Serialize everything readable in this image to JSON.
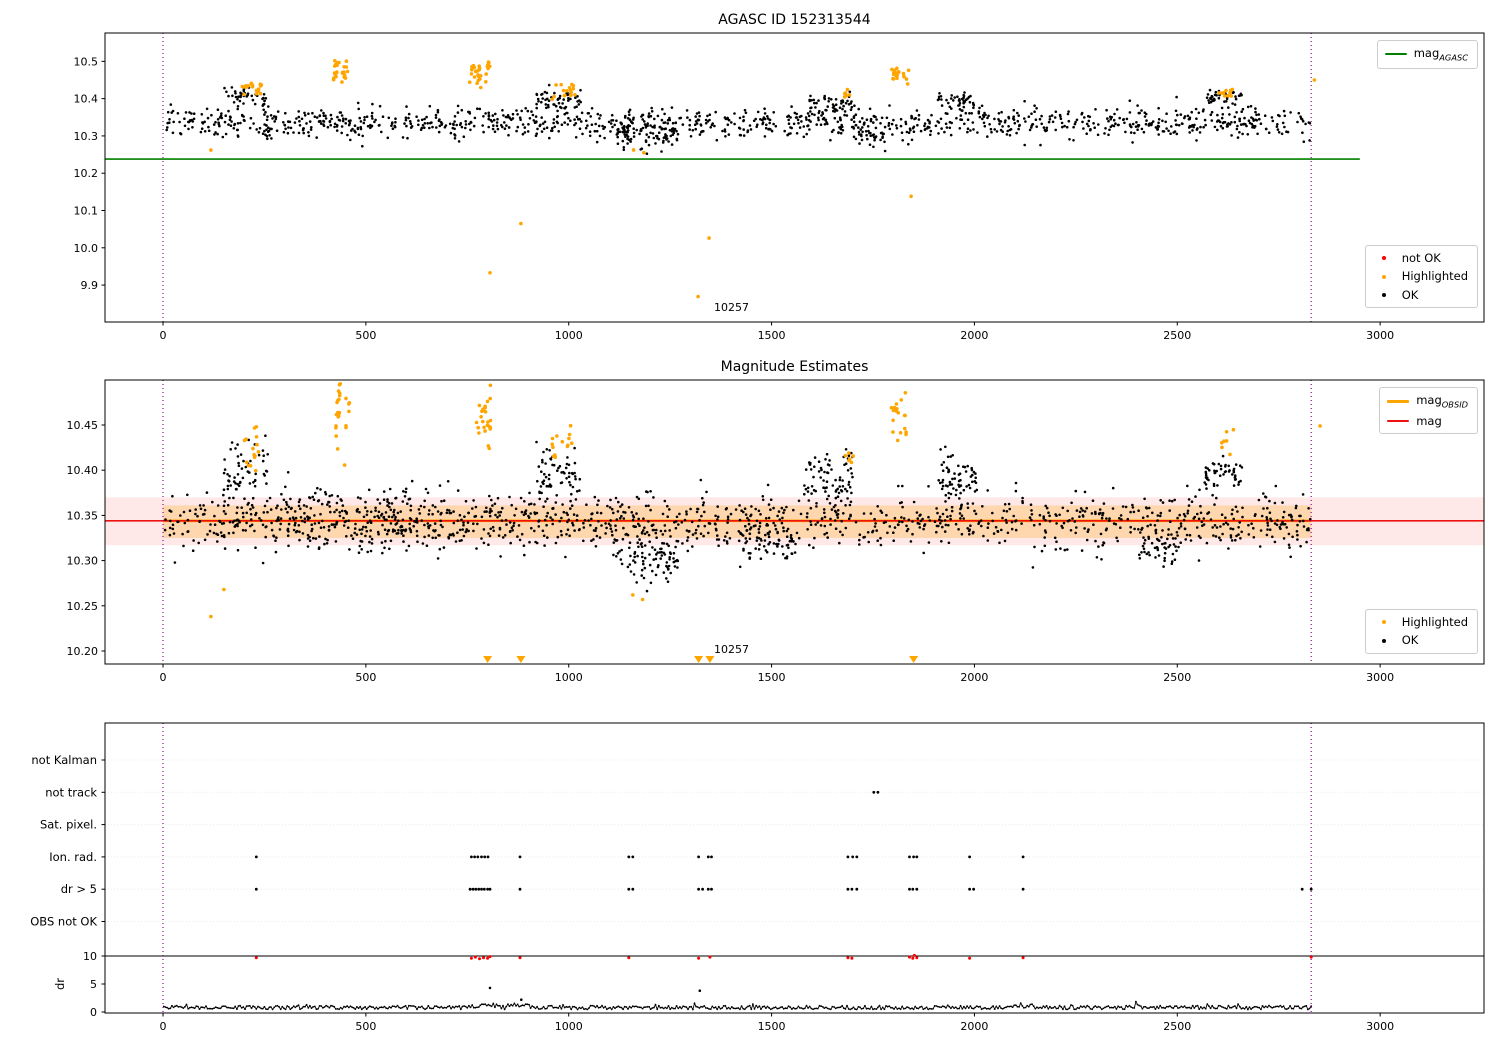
{
  "labels": {
    "dr_axis": "dr"
  },
  "colors": {
    "ok": "#000000",
    "highlighted": "#ffa500",
    "not_ok": "#ff0000",
    "mag_agasc_line": "#008000",
    "mag_obsid_line": "#ffa500",
    "mag_line": "#ee1111",
    "vline": "#990099",
    "band_red": "rgba(255,0,0,0.09)",
    "band_orange": "rgba(255,165,0,0.25)"
  },
  "chart_data": [
    {
      "type": "scatter",
      "title": "AGASC ID 152313544",
      "xlim": [
        -143,
        3256
      ],
      "ylim": [
        9.801,
        10.576
      ],
      "xticks": [
        [
          0,
          "0"
        ],
        [
          500,
          "500"
        ],
        [
          1000,
          "1000"
        ],
        [
          1500,
          "1500"
        ],
        [
          2000,
          "2000"
        ],
        [
          2500,
          "2500"
        ],
        [
          3000,
          "3000"
        ]
      ],
      "yticks": [
        [
          9.9,
          "9.9"
        ],
        [
          10.0,
          "10.0"
        ],
        [
          10.1,
          "10.1"
        ],
        [
          10.2,
          "10.2"
        ],
        [
          10.3,
          "10.3"
        ],
        [
          10.4,
          "10.4"
        ],
        [
          10.5,
          "10.5"
        ]
      ],
      "hlines": [
        {
          "name": "mag-agasc",
          "y": 10.238,
          "color": "#008000",
          "x0": -143,
          "x1": 2950,
          "width": 1.6
        }
      ],
      "vlines": {
        "xs": [
          0,
          2830
        ],
        "color": "#990099"
      },
      "annotation": {
        "text": "10257",
        "x": 1400,
        "y": 9.845
      },
      "legend_top": {
        "items": [
          {
            "type": "line",
            "color": "#008000",
            "lw": 2,
            "text": "mag",
            "sub": "AGASC"
          }
        ]
      },
      "legend_bottom": {
        "items": [
          {
            "type": "dot",
            "color": "#ff0000",
            "text": "not OK"
          },
          {
            "type": "dot",
            "color": "#ffa500",
            "text": "Highlighted"
          },
          {
            "type": "dot",
            "color": "#000000",
            "text": "OK"
          }
        ]
      },
      "series": [
        {
          "name": "OK",
          "color": "#000000",
          "size": 1.3,
          "seed": 11,
          "clusters": [
            {
              "x0": 5,
              "x1": 2828,
              "n": 1150,
              "mean": 10.335,
              "std": 0.02
            },
            {
              "x0": 150,
              "x1": 260,
              "n": 45,
              "mean": 10.405,
              "std": 0.013
            },
            {
              "x0": 920,
              "x1": 1030,
              "n": 55,
              "mean": 10.395,
              "std": 0.015
            },
            {
              "x0": 1590,
              "x1": 1700,
              "n": 50,
              "mean": 10.385,
              "std": 0.017
            },
            {
              "x0": 1910,
              "x1": 2000,
              "n": 45,
              "mean": 10.39,
              "std": 0.013
            },
            {
              "x0": 2570,
              "x1": 2660,
              "n": 40,
              "mean": 10.4,
              "std": 0.013
            },
            {
              "x0": 1120,
              "x1": 1270,
              "n": 80,
              "mean": 10.3,
              "std": 0.02
            },
            {
              "x0": 1700,
              "x1": 1780,
              "n": 30,
              "mean": 10.3,
              "std": 0.015
            }
          ],
          "points": []
        },
        {
          "name": "Highlighted",
          "color": "#ffa500",
          "size": 1.8,
          "seed": 23,
          "clusters": [
            {
              "x0": 195,
              "x1": 245,
              "n": 18,
              "mean": 10.43,
              "std": 0.012
            },
            {
              "x0": 420,
              "x1": 458,
              "n": 24,
              "mean": 10.47,
              "std": 0.018
            },
            {
              "x0": 755,
              "x1": 808,
              "n": 28,
              "mean": 10.47,
              "std": 0.018
            },
            {
              "x0": 958,
              "x1": 1018,
              "n": 16,
              "mean": 10.42,
              "std": 0.012
            },
            {
              "x0": 1680,
              "x1": 1702,
              "n": 6,
              "mean": 10.415,
              "std": 0.008
            },
            {
              "x0": 1795,
              "x1": 1838,
              "n": 20,
              "mean": 10.465,
              "std": 0.012
            },
            {
              "x0": 2598,
              "x1": 2642,
              "n": 10,
              "mean": 10.42,
              "std": 0.01
            }
          ],
          "points": [
            [
              118,
              10.262
            ],
            [
              806,
              9.933
            ],
            [
              882,
              10.065
            ],
            [
              1346,
              10.026
            ],
            [
              1319,
              9.869
            ],
            [
              1844,
              10.138
            ],
            [
              1160,
              10.262
            ],
            [
              1185,
              10.255
            ],
            [
              2838,
              10.45
            ]
          ]
        },
        {
          "name": "not OK",
          "color": "#ff0000",
          "size": 1.3,
          "seed": 5,
          "clusters": [],
          "points": []
        }
      ]
    },
    {
      "type": "scatter",
      "title": "Magnitude Estimates",
      "xlim": [
        -143,
        3256
      ],
      "ylim": [
        10.1856,
        10.4998
      ],
      "xticks": [
        [
          0,
          "0"
        ],
        [
          500,
          "500"
        ],
        [
          1000,
          "1000"
        ],
        [
          1500,
          "1500"
        ],
        [
          2000,
          "2000"
        ],
        [
          2500,
          "2500"
        ],
        [
          3000,
          "3000"
        ]
      ],
      "yticks": [
        [
          10.2,
          "10.20"
        ],
        [
          10.25,
          "10.25"
        ],
        [
          10.3,
          "10.30"
        ],
        [
          10.35,
          "10.35"
        ],
        [
          10.4,
          "10.40"
        ],
        [
          10.45,
          "10.45"
        ]
      ],
      "bands": [
        {
          "y0": 10.317,
          "y1": 10.37,
          "color": "rgba(255,0,0,0.09)",
          "x0": -143,
          "x1": 3256
        },
        {
          "y0": 10.325,
          "y1": 10.361,
          "color": "rgba(255,165,0,0.25)",
          "x0": 0,
          "x1": 2830
        }
      ],
      "hlines": [
        {
          "name": "mag-obsid",
          "y": 10.344,
          "color": "#ffa500",
          "x0": 0,
          "x1": 2830,
          "width": 2.6
        },
        {
          "name": "mag",
          "y": 10.344,
          "color": "#ee1111",
          "x0": -143,
          "x1": 3256,
          "width": 1.6
        }
      ],
      "vlines": {
        "xs": [
          0,
          2830
        ],
        "color": "#990099"
      },
      "annotation": {
        "text": "10257",
        "x": 1400,
        "y": 10.2035
      },
      "legend_top": {
        "items": [
          {
            "type": "line",
            "color": "#ffa500",
            "lw": 3,
            "text": "mag",
            "sub": "OBSID"
          },
          {
            "type": "line",
            "color": "#ee1111",
            "lw": 2,
            "text": "mag",
            "sub": ""
          }
        ]
      },
      "legend_bottom": {
        "items": [
          {
            "type": "dot",
            "color": "#ffa500",
            "text": "Highlighted"
          },
          {
            "type": "dot",
            "color": "#000000",
            "text": "OK"
          }
        ]
      },
      "clip_markers": [
        {
          "shape": "triangle-down",
          "color": "#ffa500",
          "xs": [
            800,
            882,
            1320,
            1348,
            1850
          ]
        }
      ],
      "series": [
        {
          "name": "OK",
          "color": "#000000",
          "size": 1.3,
          "seed": 31,
          "clusters": [
            {
              "x0": 5,
              "x1": 2828,
              "n": 1250,
              "mean": 10.343,
              "std": 0.016
            },
            {
              "x0": 150,
              "x1": 260,
              "n": 60,
              "mean": 10.398,
              "std": 0.015
            },
            {
              "x0": 300,
              "x1": 700,
              "n": 120,
              "mean": 10.35,
              "std": 0.02
            },
            {
              "x0": 920,
              "x1": 1030,
              "n": 60,
              "mean": 10.395,
              "std": 0.015
            },
            {
              "x0": 1580,
              "x1": 1700,
              "n": 80,
              "mean": 10.39,
              "std": 0.018
            },
            {
              "x0": 1910,
              "x1": 2010,
              "n": 60,
              "mean": 10.39,
              "std": 0.013
            },
            {
              "x0": 2570,
              "x1": 2660,
              "n": 50,
              "mean": 10.4,
              "std": 0.013
            },
            {
              "x0": 1110,
              "x1": 1270,
              "n": 90,
              "mean": 10.305,
              "std": 0.015
            },
            {
              "x0": 1420,
              "x1": 1560,
              "n": 60,
              "mean": 10.322,
              "std": 0.012
            },
            {
              "x0": 2400,
              "x1": 2500,
              "n": 40,
              "mean": 10.315,
              "std": 0.01
            }
          ],
          "points": []
        },
        {
          "name": "Highlighted",
          "color": "#ffa500",
          "size": 1.8,
          "seed": 47,
          "clusters": [
            {
              "x0": 200,
              "x1": 245,
              "n": 14,
              "mean": 10.425,
              "std": 0.012
            },
            {
              "x0": 425,
              "x1": 462,
              "n": 26,
              "mean": 10.465,
              "std": 0.02
            },
            {
              "x0": 765,
              "x1": 808,
              "n": 26,
              "mean": 10.46,
              "std": 0.018
            },
            {
              "x0": 958,
              "x1": 1012,
              "n": 14,
              "mean": 10.43,
              "std": 0.01
            },
            {
              "x0": 1680,
              "x1": 1702,
              "n": 6,
              "mean": 10.415,
              "std": 0.006
            },
            {
              "x0": 1795,
              "x1": 1838,
              "n": 20,
              "mean": 10.46,
              "std": 0.016
            },
            {
              "x0": 2606,
              "x1": 2642,
              "n": 7,
              "mean": 10.43,
              "std": 0.007
            }
          ],
          "points": [
            [
              118,
              10.238
            ],
            [
              150,
              10.268
            ],
            [
              230,
              10.448
            ],
            [
              1158,
              10.262
            ],
            [
              1182,
              10.257
            ],
            [
              2852,
              10.449
            ]
          ]
        }
      ]
    },
    {
      "type": "flags",
      "title": "",
      "xlim": [
        -143,
        3256
      ],
      "xticks": [
        [
          0,
          "0"
        ],
        [
          500,
          "500"
        ],
        [
          1000,
          "1000"
        ],
        [
          1500,
          "1500"
        ],
        [
          2000,
          "2000"
        ],
        [
          2500,
          "2500"
        ],
        [
          3000,
          "3000"
        ]
      ],
      "rows": [
        "not Kalman",
        "not track",
        "Sat. pixel.",
        "Ion. rad.",
        "dr > 5",
        "OBS not OK"
      ],
      "dr_ticks": [
        [
          0,
          "0"
        ],
        [
          5,
          "5"
        ],
        [
          10,
          "10"
        ]
      ],
      "ylabel": "dr",
      "threshold_y": 10,
      "vlines": {
        "xs": [
          0,
          2830
        ],
        "color": "#990099"
      },
      "flag_points": [
        {
          "row": "not track",
          "color": "#000000",
          "x": [
            1752,
            1762
          ]
        },
        {
          "row": "Ion. rad.",
          "color": "#000000",
          "x": [
            230,
            760,
            768,
            776,
            785,
            793,
            801,
            880,
            1148,
            1158,
            1320,
            1344,
            1352,
            1688,
            1700,
            1710,
            1840,
            1850,
            1858,
            1988,
            2120
          ]
        },
        {
          "row": "dr > 5",
          "color": "#000000",
          "x": [
            230,
            757,
            764,
            771,
            778,
            785,
            792,
            800,
            806,
            880,
            1148,
            1158,
            1320,
            1330,
            1344,
            1352,
            1688,
            1698,
            1710,
            1840,
            1848,
            1858,
            1988,
            1998,
            2120,
            2808,
            2830
          ]
        }
      ],
      "dr_red_points": {
        "color": "#ff0000",
        "pts": [
          [
            230,
            9.7
          ],
          [
            760,
            9.6
          ],
          [
            770,
            9.8
          ],
          [
            780,
            9.5
          ],
          [
            790,
            9.7
          ],
          [
            800,
            9.6
          ],
          [
            806,
            9.9
          ],
          [
            880,
            9.7
          ],
          [
            1148,
            9.7
          ],
          [
            1320,
            9.6
          ],
          [
            1348,
            9.8
          ],
          [
            1688,
            9.7
          ],
          [
            1698,
            9.6
          ],
          [
            1840,
            9.8
          ],
          [
            1848,
            9.6
          ],
          [
            1852,
            10.1
          ],
          [
            1858,
            9.7
          ],
          [
            1988,
            9.6
          ],
          [
            2120,
            9.7
          ],
          [
            2830,
            9.8
          ]
        ]
      },
      "dr_black_points": [
        [
          806,
          4.3
        ],
        [
          1323,
          3.8
        ],
        [
          883,
          2.2
        ]
      ],
      "dr_trace": {
        "seed": 71,
        "x0": 2,
        "x1": 2830,
        "step": 4,
        "base": 0.8,
        "noise": 0.7,
        "bumps": [
          {
            "x0": 755,
            "x1": 825,
            "add": 0.35
          },
          {
            "x0": 855,
            "x1": 905,
            "add": 0.45
          },
          {
            "x0": 955,
            "x1": 1000,
            "add": 0.25
          },
          {
            "x0": 2080,
            "x1": 2145,
            "add": 0.45
          }
        ]
      }
    }
  ]
}
